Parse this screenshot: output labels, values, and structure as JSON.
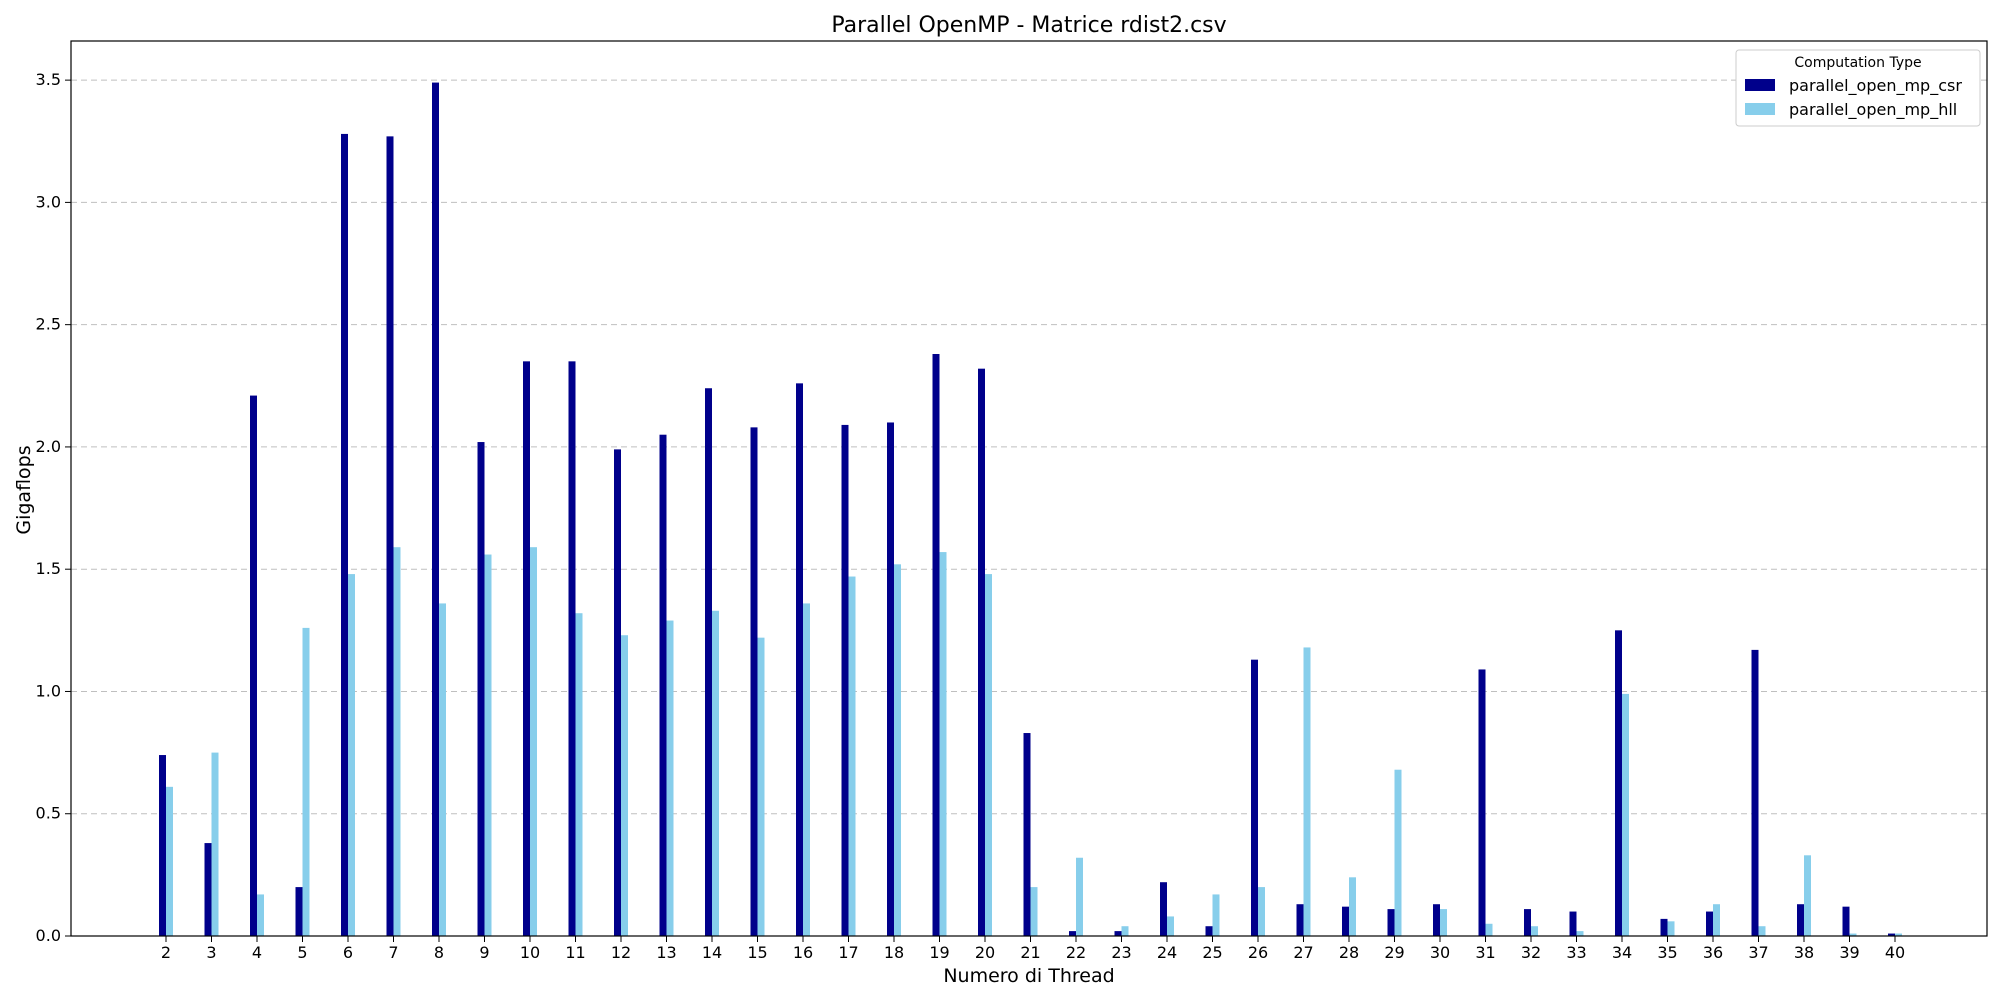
{
  "chart_data": {
    "type": "bar",
    "title": "Parallel OpenMP - Matrice rdist2.csv",
    "xlabel": "Numero di Thread",
    "ylabel": "Gigaflops",
    "ylim": [
      0,
      3.66
    ],
    "yticks": [
      "0.0",
      "0.5",
      "1.0",
      "1.5",
      "2.0",
      "2.5",
      "3.0",
      "3.5"
    ],
    "grid": "y-dashed",
    "legend": {
      "title": "Computation Type",
      "placement": "top-right"
    },
    "categories": [
      "2",
      "3",
      "4",
      "5",
      "6",
      "7",
      "8",
      "9",
      "10",
      "11",
      "12",
      "13",
      "14",
      "15",
      "16",
      "17",
      "18",
      "19",
      "20",
      "21",
      "22",
      "23",
      "24",
      "25",
      "26",
      "27",
      "28",
      "29",
      "30",
      "31",
      "32",
      "33",
      "34",
      "35",
      "36",
      "37",
      "38",
      "39",
      "40"
    ],
    "series": [
      {
        "name": "parallel_open_mp_csr",
        "color": "#00008b",
        "values": [
          0.74,
          0.38,
          2.21,
          0.2,
          3.28,
          3.27,
          3.49,
          2.02,
          2.35,
          2.35,
          1.99,
          2.05,
          2.24,
          2.08,
          2.26,
          2.09,
          2.1,
          2.38,
          2.32,
          0.83,
          0.02,
          0.02,
          0.22,
          0.04,
          1.13,
          0.13,
          0.12,
          0.11,
          0.13,
          1.09,
          0.11,
          0.1,
          1.25,
          0.07,
          0.1,
          1.17,
          0.13,
          0.12,
          0.01
        ]
      },
      {
        "name": "parallel_open_mp_hll",
        "color": "#87ceeb",
        "values": [
          0.61,
          0.75,
          0.17,
          1.26,
          1.48,
          1.59,
          1.36,
          1.56,
          1.59,
          1.32,
          1.23,
          1.29,
          1.33,
          1.22,
          1.36,
          1.47,
          1.52,
          1.57,
          1.48,
          0.2,
          0.32,
          0.04,
          0.08,
          0.17,
          0.2,
          1.18,
          0.24,
          0.68,
          0.11,
          0.05,
          0.04,
          0.02,
          0.99,
          0.06,
          0.13,
          0.04,
          0.33,
          0.01,
          0.01
        ]
      }
    ]
  }
}
